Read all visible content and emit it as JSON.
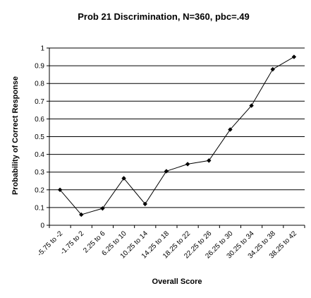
{
  "chart_data": {
    "type": "line",
    "title": "Prob 21 Discrimination, N=360, pbc=.49",
    "xlabel": "Overall Score",
    "ylabel": "Probability of Correct Response",
    "categories": [
      "-5.75 to -2",
      "-1.75 to 2",
      "2.25 to 6",
      "6.25 to 10",
      "10.25 to 14",
      "14.25 to 18",
      "18.25 to 22",
      "22.25 to 26",
      "26.25 to 30",
      "30.25 to 34",
      "34.25 to 38",
      "38.25 to 42"
    ],
    "values": [
      0.2,
      0.06,
      0.095,
      0.265,
      0.12,
      0.305,
      0.345,
      0.365,
      0.54,
      0.675,
      0.88,
      0.95
    ],
    "ylim": [
      0,
      1
    ],
    "yticks": [
      "0",
      "0.1",
      "0.2",
      "0.3",
      "0.4",
      "0.5",
      "0.6",
      "0.7",
      "0.8",
      "0.9",
      "1"
    ],
    "grid": true,
    "legend": "none",
    "colors": {
      "line": "#000000",
      "grid": "#000000",
      "background": "#ffffff"
    }
  }
}
